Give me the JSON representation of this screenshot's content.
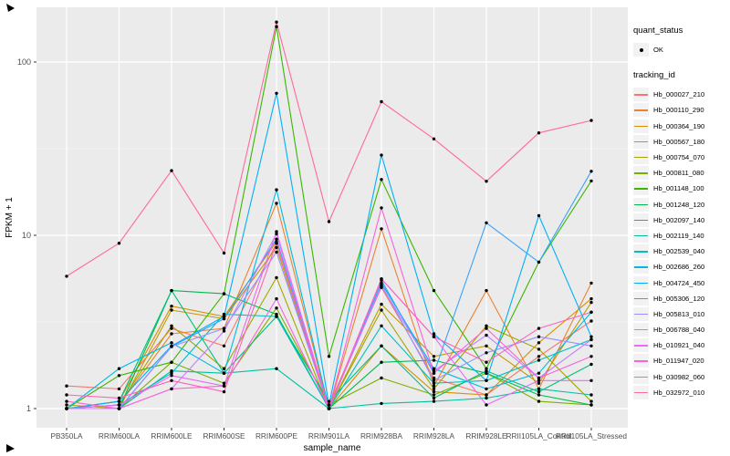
{
  "figure": {
    "y_axis": {
      "title": "FPKM + 1",
      "scale": "log10",
      "ticks": [
        {
          "label": "1",
          "value": 1
        },
        {
          "label": "10",
          "value": 10
        },
        {
          "label": "100",
          "value": 100
        }
      ],
      "minor_breaks": [
        3.1623,
        31.623
      ]
    },
    "x_axis": {
      "title": "sample_name"
    },
    "legend": {
      "quant_status": {
        "title": "quant_status",
        "items": [
          {
            "label": "OK",
            "shape": "point",
            "color": "#000000"
          }
        ]
      },
      "tracking_id": {
        "title": "tracking_id"
      }
    }
  },
  "chart_data": {
    "type": "line",
    "title": "",
    "xlabel": "sample_name",
    "ylabel": "FPKM + 1",
    "yscale": "log10",
    "ylim": [
      0.8,
      215
    ],
    "grid": true,
    "legend_position": "right",
    "point_shape": "filled-circle",
    "point_color": "#000000",
    "categories": [
      "PB350LA",
      "RRIM600LA",
      "RRIM600LE",
      "RRIM600SE",
      "RRIM600PE",
      "RRIM901LA",
      "RRIM928BA",
      "RRIM928LA",
      "RRIM928LE",
      "RRII105LA_Control",
      "RRII105LA_Stressed"
    ],
    "series": [
      {
        "name": "Hb_000027_210",
        "color": "#F8766D",
        "values": [
          1.35,
          1.3,
          2.9,
          2.3,
          9.0,
          1.05,
          5.0,
          1.5,
          1.2,
          2.0,
          3.2
        ]
      },
      {
        "name": "Hb_000110_290",
        "color": "#EA8331",
        "values": [
          1.0,
          1.05,
          2.7,
          2.9,
          15.3,
          1.0,
          10.9,
          1.35,
          4.8,
          1.3,
          5.3
        ]
      },
      {
        "name": "Hb_000364_190",
        "color": "#D89000",
        "values": [
          1.0,
          1.1,
          3.9,
          3.4,
          9.2,
          1.0,
          2.3,
          1.25,
          1.2,
          2.4,
          4.3
        ]
      },
      {
        "name": "Hb_000567_180",
        "color": "#C09B00",
        "values": [
          1.05,
          1.0,
          3.7,
          3.3,
          8.5,
          1.0,
          4.0,
          2.0,
          2.3,
          1.4,
          4.1
        ]
      },
      {
        "name": "Hb_000754_070",
        "color": "#A3A500",
        "values": [
          1.0,
          1.05,
          3.0,
          1.7,
          5.7,
          1.0,
          3.7,
          1.3,
          3.0,
          2.2,
          1.1
        ]
      },
      {
        "name": "Hb_000811_080",
        "color": "#7CAE00",
        "values": [
          1.0,
          1.0,
          1.85,
          1.4,
          3.8,
          1.05,
          1.5,
          1.2,
          1.6,
          1.1,
          1.05
        ]
      },
      {
        "name": "Hb_001148_100",
        "color": "#39B600",
        "values": [
          1.0,
          1.55,
          1.85,
          4.6,
          160.0,
          2.0,
          21.0,
          4.8,
          1.7,
          7.0,
          20.6
        ]
      },
      {
        "name": "Hb_001248_120",
        "color": "#00BB4E",
        "values": [
          1.0,
          1.0,
          4.8,
          4.6,
          3.5,
          1.0,
          1.85,
          1.9,
          1.6,
          1.2,
          1.05
        ]
      },
      {
        "name": "Hb_002097_140",
        "color": "#00BF7D",
        "values": [
          1.0,
          1.1,
          4.8,
          1.6,
          3.4,
          1.1,
          2.3,
          1.15,
          1.65,
          1.25,
          1.8
        ]
      },
      {
        "name": "Hb_002119_140",
        "color": "#00C1A3",
        "values": [
          1.0,
          1.0,
          1.65,
          1.6,
          1.7,
          1.0,
          1.07,
          1.1,
          1.15,
          1.3,
          1.2
        ]
      },
      {
        "name": "Hb_002539_040",
        "color": "#00BFC4",
        "values": [
          1.0,
          1.05,
          1.6,
          3.5,
          3.4,
          1.0,
          3.0,
          1.4,
          1.45,
          1.9,
          2.5
        ]
      },
      {
        "name": "Hb_002686_260",
        "color": "#00BAE0",
        "values": [
          1.0,
          1.7,
          2.4,
          1.6,
          18.3,
          1.0,
          5.3,
          1.7,
          1.3,
          1.6,
          3.6
        ]
      },
      {
        "name": "Hb_004724_450",
        "color": "#00B0F6",
        "values": [
          1.0,
          1.1,
          2.3,
          3.4,
          66.0,
          1.05,
          29.0,
          2.7,
          1.45,
          13.0,
          2.6
        ]
      },
      {
        "name": "Hb_005306_120",
        "color": "#35A2FF",
        "values": [
          1.0,
          1.0,
          2.28,
          3.3,
          9.5,
          1.0,
          5.5,
          1.6,
          11.8,
          7.0,
          23.4
        ]
      },
      {
        "name": "Hb_005813_010",
        "color": "#9590FF",
        "values": [
          1.0,
          1.0,
          2.28,
          2.9,
          8.0,
          1.0,
          5.2,
          1.45,
          2.1,
          2.6,
          2.3
        ]
      },
      {
        "name": "Hb_006788_040",
        "color": "#C77CFF",
        "values": [
          1.0,
          1.0,
          1.3,
          2.8,
          10.2,
          1.0,
          5.1,
          1.65,
          2.65,
          1.5,
          2.5
        ]
      },
      {
        "name": "Hb_010921_040",
        "color": "#E76BF3",
        "values": [
          1.0,
          1.05,
          1.55,
          1.35,
          10.5,
          1.0,
          5.6,
          2.6,
          1.05,
          1.45,
          1.45
        ]
      },
      {
        "name": "Hb_011947_020",
        "color": "#FA62DB",
        "values": [
          1.1,
          1.0,
          1.3,
          1.35,
          4.3,
          1.0,
          14.4,
          1.6,
          2.9,
          1.5,
          2.0
        ]
      },
      {
        "name": "Hb_030982_060",
        "color": "#FF62BC",
        "values": [
          1.2,
          1.15,
          1.45,
          1.25,
          9.0,
          1.0,
          5.6,
          2.6,
          1.85,
          2.9,
          3.6
        ]
      },
      {
        "name": "Hb_032972_010",
        "color": "#FF6A98",
        "values": [
          5.8,
          9.0,
          23.6,
          7.9,
          170.0,
          12.0,
          59.0,
          36.0,
          20.5,
          39.0,
          46.0
        ]
      }
    ]
  },
  "style": {
    "panel_bg": "#EBEBEB",
    "grid_major": "#FFFFFF",
    "grid_minor": "#F7F7F7",
    "tick_label_color": "#4D4D4D",
    "axis_title_color": "#000000",
    "legend_key_bg": "#F2F2F2"
  }
}
